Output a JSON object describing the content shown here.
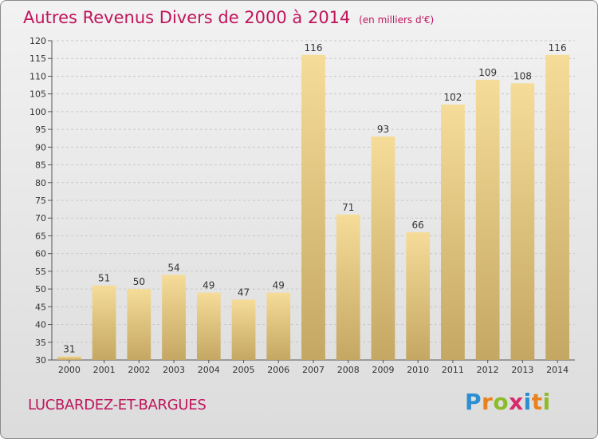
{
  "header": {
    "title": "Autres Revenus Divers de 2000 à 2014",
    "subtitle": "(en milliers d'€)"
  },
  "footer": {
    "commune": "LUCBARDEZ-ET-BARGUES",
    "logo_letters": [
      "P",
      "r",
      "o",
      "x",
      "i",
      "t",
      "i"
    ],
    "logo_colors": [
      "#2b8fd1",
      "#e8821e",
      "#8cbc2a",
      "#d62a6b",
      "#2b8fd1",
      "#e8821e",
      "#8cbc2a"
    ]
  },
  "chart_data": {
    "type": "bar",
    "title": "Autres Revenus Divers de 2000 à 2014",
    "subtitle": "(en milliers d'€)",
    "categories": [
      "2000",
      "2001",
      "2002",
      "2003",
      "2004",
      "2005",
      "2006",
      "2007",
      "2008",
      "2009",
      "2010",
      "2011",
      "2012",
      "2013",
      "2014"
    ],
    "values": [
      31,
      51,
      50,
      54,
      49,
      47,
      49,
      116,
      71,
      93,
      66,
      102,
      109,
      108,
      116
    ],
    "ylim": [
      30,
      120
    ],
    "yticks": [
      30,
      35,
      40,
      45,
      50,
      55,
      60,
      65,
      70,
      75,
      80,
      85,
      90,
      95,
      100,
      105,
      110,
      115,
      120
    ],
    "grid": true,
    "legend": "none",
    "colors": {
      "bar_top": "#f5dc98",
      "bar_bottom": "#c4a762",
      "grid": "#c8c8c8",
      "text": "#333333"
    }
  }
}
